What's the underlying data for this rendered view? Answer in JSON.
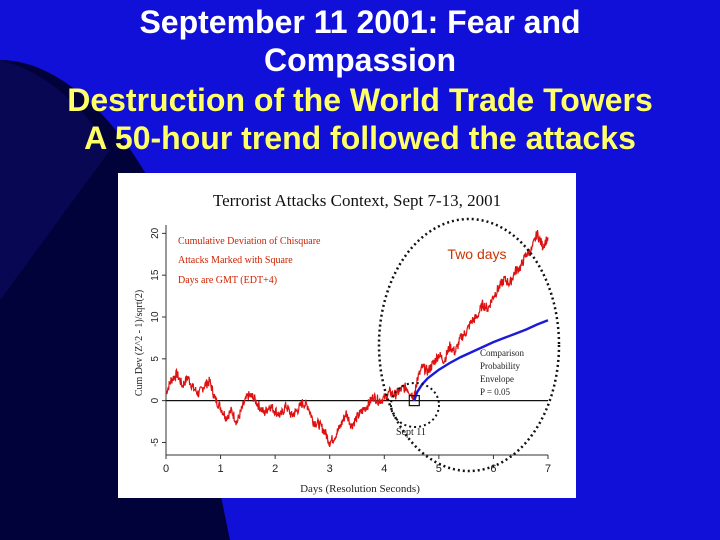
{
  "slide": {
    "title_lines": [
      "September 11 2001: Fear and",
      "Compassion",
      "Destruction of the World Trade Towers",
      "A 50-hour trend followed the attacks"
    ]
  },
  "colors": {
    "background": "#1010d8",
    "title_white": "#ffffff",
    "title_yellow": "#ffff66",
    "data_line": "#dd1111",
    "envelope_line": "#1a1ad8",
    "legend_text": "#cc2200"
  },
  "chart_data": {
    "type": "line",
    "title": "Terrorist Attacks Context, Sept 7-13, 2001",
    "xlabel": "Days (Resolution Seconds)",
    "ylabel": "Cum Dev (Z^2 - 1)/sqrt(2)",
    "xlim": [
      0,
      7
    ],
    "ylim": [
      -6.5,
      21
    ],
    "x_ticks": [
      "0",
      "1",
      "2",
      "3",
      "4",
      "5",
      "6",
      "7"
    ],
    "y_ticks": [
      "-5",
      "0",
      "5",
      "10",
      "15",
      "20"
    ],
    "legend": [
      "Cumulative Deviation of Chisquare",
      "Attacks Marked with Square",
      "Days are GMT (EDT+4)"
    ],
    "annotations": {
      "two_days": "Two days",
      "sept_11": "Sept 11",
      "envelope_label": [
        "Comparison",
        "Probability",
        "Envelope",
        "P = 0.05"
      ]
    },
    "attack_marker": {
      "x": 4.55,
      "y": 0
    },
    "series": [
      {
        "name": "Cumulative Deviation of Chisquare",
        "x": [
          0.0,
          0.1,
          0.2,
          0.3,
          0.4,
          0.5,
          0.6,
          0.7,
          0.8,
          0.9,
          1.0,
          1.1,
          1.2,
          1.3,
          1.4,
          1.5,
          1.6,
          1.7,
          1.8,
          1.9,
          2.0,
          2.1,
          2.2,
          2.3,
          2.4,
          2.5,
          2.6,
          2.7,
          2.8,
          2.9,
          3.0,
          3.1,
          3.2,
          3.3,
          3.4,
          3.5,
          3.6,
          3.7,
          3.8,
          3.9,
          4.0,
          4.1,
          4.2,
          4.3,
          4.4,
          4.5,
          4.55,
          4.6,
          4.7,
          4.8,
          4.9,
          5.0,
          5.1,
          5.2,
          5.3,
          5.4,
          5.5,
          5.6,
          5.7,
          5.8,
          5.9,
          6.0,
          6.1,
          6.2,
          6.3,
          6.4,
          6.5,
          6.6,
          6.7,
          6.8,
          6.9,
          7.0
        ],
        "values": [
          1.0,
          2.5,
          3.2,
          1.8,
          2.8,
          1.5,
          0.8,
          1.8,
          2.3,
          0.2,
          -0.8,
          -2.0,
          -1.2,
          -2.6,
          -0.8,
          0.6,
          0.4,
          -0.6,
          -1.5,
          -0.6,
          -1.2,
          -1.8,
          -0.6,
          -1.8,
          -1.2,
          -0.3,
          -0.6,
          -2.5,
          -2.8,
          -3.6,
          -5.0,
          -4.2,
          -3.0,
          -1.5,
          -3.0,
          -2.0,
          -1.2,
          -0.5,
          0.5,
          0.0,
          0.3,
          1.0,
          0.7,
          1.3,
          1.6,
          0.8,
          0.4,
          2.5,
          4.0,
          3.5,
          4.5,
          5.5,
          4.8,
          6.5,
          5.8,
          7.5,
          8.2,
          9.5,
          10.0,
          11.5,
          11.0,
          12.5,
          13.5,
          14.5,
          14.0,
          15.5,
          16.0,
          17.5,
          18.0,
          20.0,
          18.5,
          19.5
        ]
      },
      {
        "name": "Comparison Probability Envelope",
        "x": [
          4.55,
          4.6,
          4.7,
          4.8,
          4.9,
          5.0,
          5.2,
          5.4,
          5.6,
          5.8,
          6.0,
          6.2,
          6.4,
          6.6,
          6.8,
          7.0
        ],
        "values": [
          0.0,
          1.0,
          2.0,
          2.7,
          3.2,
          3.7,
          4.5,
          5.2,
          5.8,
          6.4,
          7.0,
          7.5,
          8.0,
          8.5,
          9.1,
          9.6
        ]
      }
    ]
  }
}
